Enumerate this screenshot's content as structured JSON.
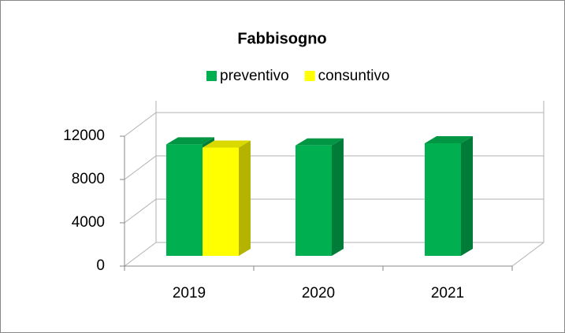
{
  "chart_data": {
    "type": "bar3d",
    "title": "Fabbisogno",
    "categories": [
      "2019",
      "2020",
      "2021"
    ],
    "series": [
      {
        "name": "preventivo",
        "color": "#00b050",
        "values": [
          10300,
          10200,
          10400
        ]
      },
      {
        "name": "consuntivo",
        "color": "#ffff00",
        "values": [
          10000,
          null,
          null
        ]
      }
    ],
    "ylim": [
      0,
      12000
    ],
    "yticks": [
      0,
      4000,
      8000,
      12000
    ],
    "grid": true,
    "legend": "top"
  }
}
